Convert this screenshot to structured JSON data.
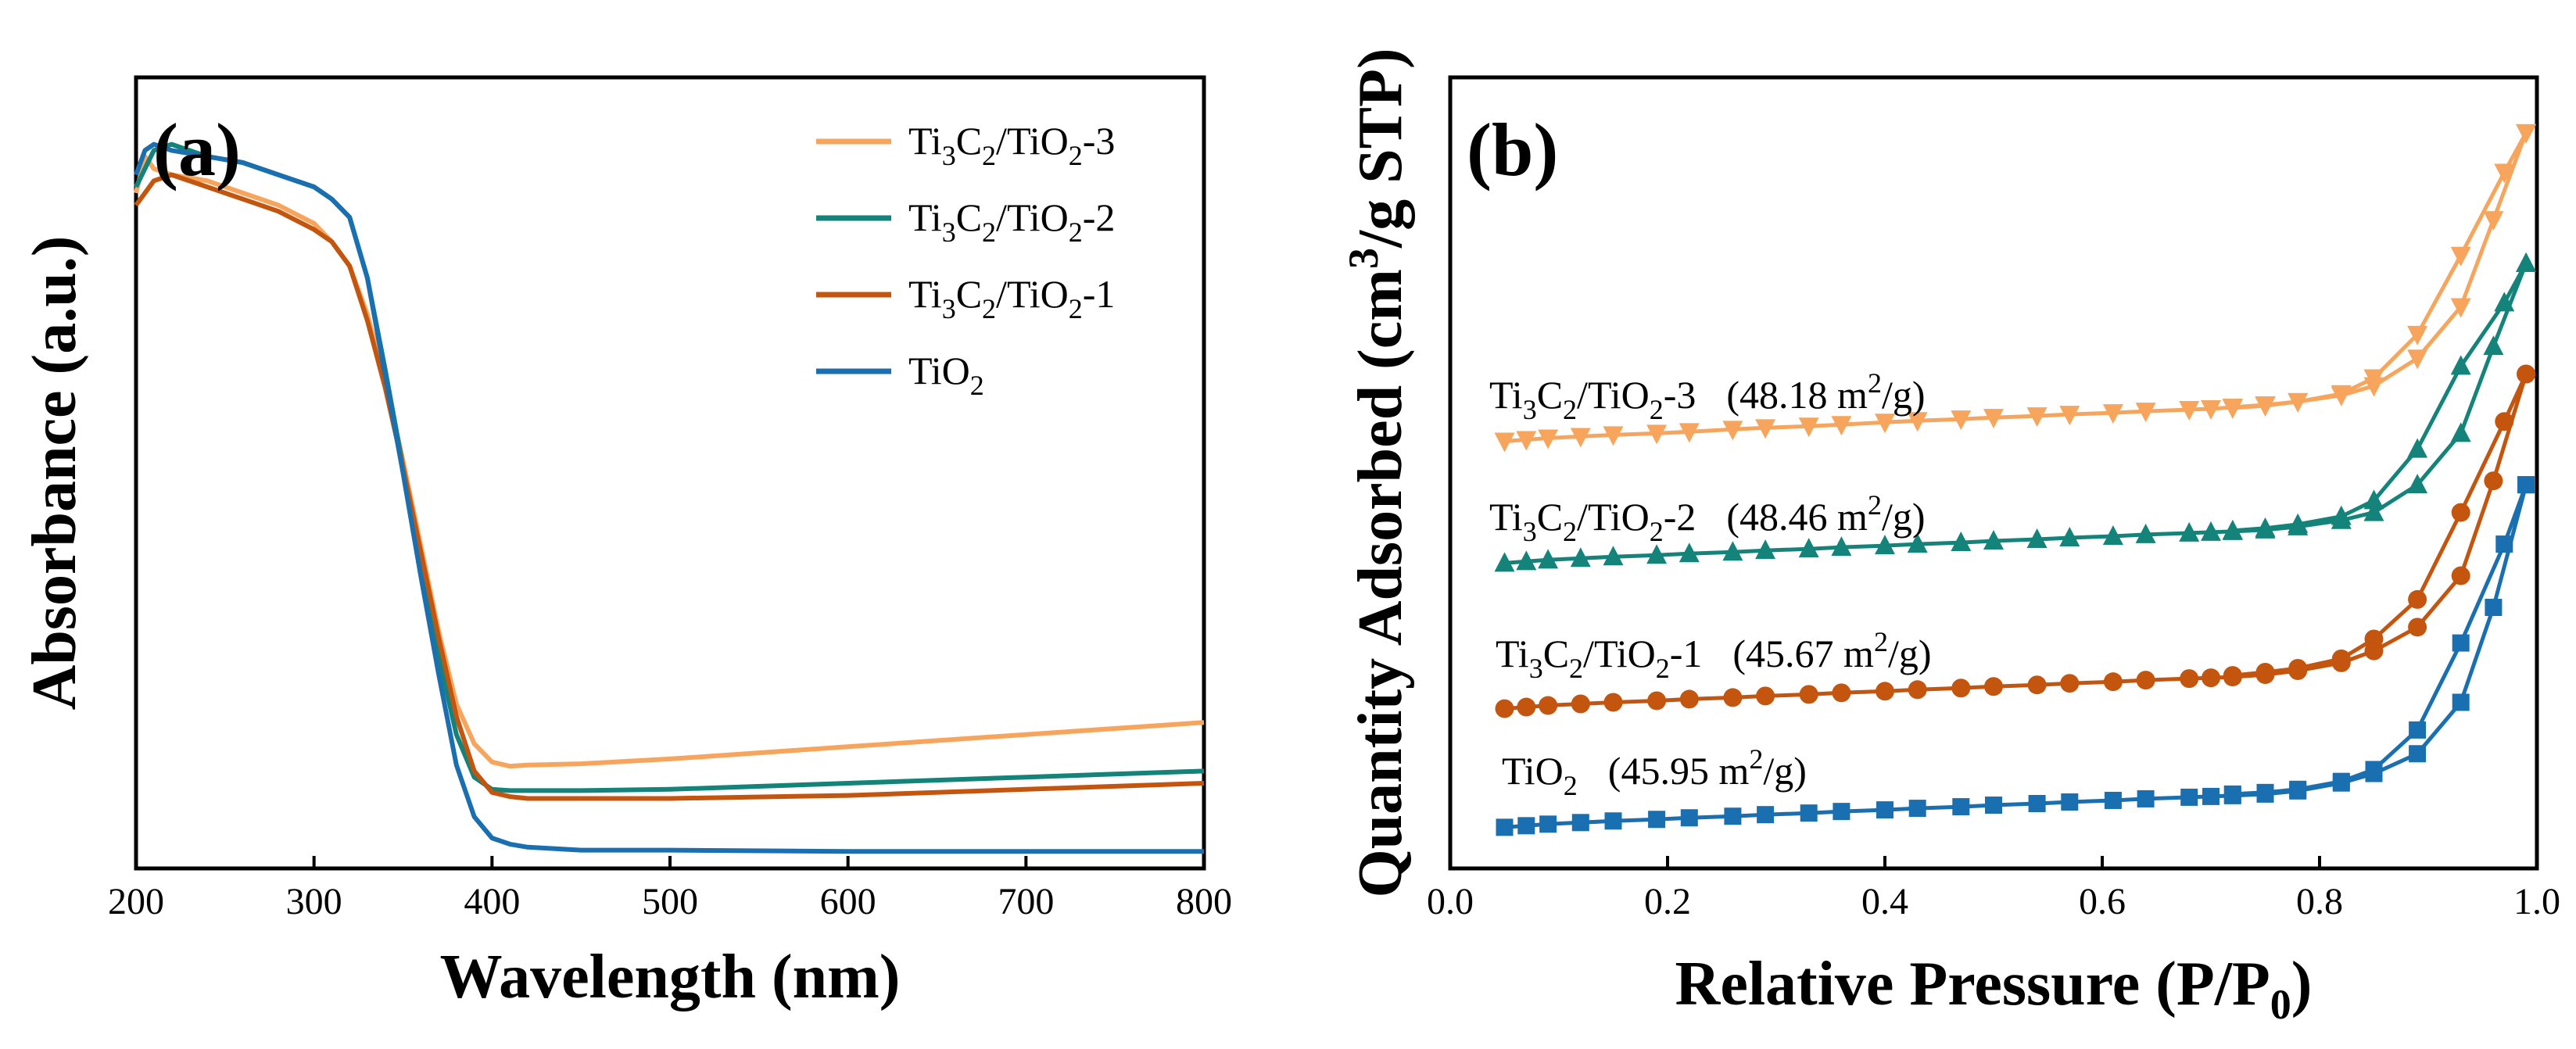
{
  "colors": {
    "tio2": "#1a6fb0",
    "tc1": "#c4550f",
    "tc2": "#14837a",
    "tc3": "#f7a55c"
  },
  "chart_data": [
    {
      "type": "line",
      "panel": "(a)",
      "xlabel": "Wavelength (nm)",
      "ylabel": "Absorbance (a.u.)",
      "xlim": [
        200,
        800
      ],
      "ylim": [
        0,
        1.3
      ],
      "x_ticks": [
        "200",
        "300",
        "400",
        "500",
        "600",
        "700",
        "800"
      ],
      "legend": {
        "placement": "top-right",
        "entries": [
          {
            "key": "tc3",
            "base": "Ti",
            "s1": "3",
            "m1": "C",
            "s2": "2",
            "m2": "/TiO",
            "s3": "2",
            "suffix": "-3"
          },
          {
            "key": "tc2",
            "base": "Ti",
            "s1": "3",
            "m1": "C",
            "s2": "2",
            "m2": "/TiO",
            "s3": "2",
            "suffix": "-2"
          },
          {
            "key": "tc1",
            "base": "Ti",
            "s1": "3",
            "m1": "C",
            "s2": "2",
            "m2": "/TiO",
            "s3": "2",
            "suffix": "-1"
          },
          {
            "key": "tio2",
            "base": "TiO",
            "s1": "2",
            "m1": "",
            "s2": "",
            "m2": "",
            "s3": "",
            "suffix": ""
          }
        ]
      },
      "series": [
        {
          "name": "Ti3C2/TiO2-3",
          "key": "tc3",
          "x": [
            200,
            205,
            210,
            220,
            240,
            260,
            280,
            300,
            310,
            320,
            330,
            340,
            350,
            360,
            370,
            380,
            390,
            400,
            410,
            420,
            450,
            500,
            600,
            700,
            800
          ],
          "y": [
            1.11,
            1.17,
            1.15,
            1.14,
            1.13,
            1.11,
            1.09,
            1.06,
            1.03,
            0.99,
            0.91,
            0.8,
            0.67,
            0.53,
            0.39,
            0.27,
            0.205,
            0.175,
            0.168,
            0.17,
            0.172,
            0.18,
            0.2,
            0.22,
            0.24
          ]
        },
        {
          "name": "Ti3C2/TiO2-2",
          "key": "tc2",
          "x": [
            200,
            205,
            210,
            220,
            240,
            260,
            280,
            300,
            310,
            320,
            330,
            340,
            350,
            360,
            370,
            380,
            390,
            400,
            410,
            420,
            450,
            500,
            600,
            700,
            800
          ],
          "y": [
            1.12,
            1.15,
            1.18,
            1.19,
            1.17,
            1.16,
            1.14,
            1.12,
            1.1,
            1.07,
            0.97,
            0.82,
            0.66,
            0.5,
            0.35,
            0.22,
            0.15,
            0.13,
            0.128,
            0.128,
            0.128,
            0.13,
            0.14,
            0.15,
            0.16
          ]
        },
        {
          "name": "Ti3C2/TiO2-1",
          "key": "tc1",
          "x": [
            200,
            210,
            220,
            240,
            260,
            280,
            300,
            310,
            320,
            330,
            340,
            350,
            360,
            370,
            380,
            390,
            400,
            410,
            420,
            450,
            500,
            600,
            700,
            800
          ],
          "y": [
            1.09,
            1.13,
            1.14,
            1.12,
            1.1,
            1.08,
            1.05,
            1.03,
            0.99,
            0.9,
            0.79,
            0.66,
            0.52,
            0.38,
            0.25,
            0.16,
            0.125,
            0.118,
            0.115,
            0.115,
            0.115,
            0.12,
            0.13,
            0.14
          ]
        },
        {
          "name": "TiO2",
          "key": "tio2",
          "x": [
            200,
            205,
            210,
            220,
            240,
            260,
            280,
            300,
            310,
            320,
            330,
            340,
            350,
            360,
            370,
            380,
            390,
            400,
            410,
            420,
            450,
            500,
            600,
            700,
            800
          ],
          "y": [
            1.14,
            1.18,
            1.19,
            1.18,
            1.17,
            1.16,
            1.14,
            1.12,
            1.1,
            1.07,
            0.97,
            0.81,
            0.65,
            0.48,
            0.32,
            0.17,
            0.085,
            0.05,
            0.04,
            0.035,
            0.03,
            0.03,
            0.028,
            0.028,
            0.028
          ]
        }
      ]
    },
    {
      "type": "line",
      "panel": "(b)",
      "xlabel_main": "Relative Pressure (P/P",
      "xlabel_sub": "0",
      "xlabel_close": ")",
      "ylabel_main": "Quantity Adsorbed (cm",
      "ylabel_sup": "3",
      "ylabel_rest": "/g STP)",
      "xlim": [
        0,
        1.0
      ],
      "ylim": [
        0,
        100
      ],
      "x_ticks": [
        "0.0",
        "0.2",
        "0.4",
        "0.6",
        "0.8",
        "1.0"
      ],
      "annotations": [
        {
          "key": "tc3",
          "base": "Ti",
          "s1": "3",
          "m1": "C",
          "s2": "2",
          "m2": "/TiO",
          "s3": "2",
          "suffix": "-3",
          "area": "(48.18 m",
          "sup": "2",
          "unit": "/g)"
        },
        {
          "key": "tc2",
          "base": "Ti",
          "s1": "3",
          "m1": "C",
          "s2": "2",
          "m2": "/TiO",
          "s3": "2",
          "suffix": "-2",
          "area": "(48.46 m",
          "sup": "2",
          "unit": "/g)"
        },
        {
          "key": "tc1",
          "base": "Ti",
          "s1": "3",
          "m1": "C",
          "s2": "2",
          "m2": "/TiO",
          "s3": "2",
          "suffix": "-1",
          "area": "(45.67 m",
          "sup": "2",
          "unit": "/g)"
        },
        {
          "key": "tio2",
          "base": "TiO",
          "s1": "2",
          "m1": "",
          "s2": "",
          "m2": "",
          "s3": "",
          "suffix": "",
          "area": "(45.95 m",
          "sup": "2",
          "unit": "/g)"
        }
      ],
      "series": [
        {
          "name": "Ti3C2/TiO2-3",
          "key": "tc3",
          "marker": "triangle-down",
          "adsorption_x": [
            0.05,
            0.07,
            0.09,
            0.12,
            0.15,
            0.19,
            0.22,
            0.26,
            0.29,
            0.33,
            0.36,
            0.4,
            0.43,
            0.47,
            0.5,
            0.54,
            0.57,
            0.61,
            0.64,
            0.68,
            0.7,
            0.72,
            0.75,
            0.78,
            0.82,
            0.85,
            0.89,
            0.93,
            0.96,
            0.99
          ],
          "adsorption_y": [
            54.0,
            54.2,
            54.4,
            54.6,
            54.8,
            55.0,
            55.2,
            55.5,
            55.7,
            55.9,
            56.1,
            56.4,
            56.6,
            56.8,
            57.0,
            57.2,
            57.4,
            57.6,
            57.8,
            58.0,
            58.1,
            58.3,
            58.6,
            59.0,
            59.8,
            61.0,
            64.5,
            71.0,
            82.0,
            93.0
          ],
          "desorption_x": [
            0.99,
            0.97,
            0.93,
            0.89,
            0.85,
            0.82,
            0.78,
            0.75,
            0.72
          ],
          "desorption_y": [
            93.0,
            88.0,
            77.5,
            67.5,
            62.0,
            60.0,
            59.0,
            58.5,
            58.2
          ]
        },
        {
          "name": "Ti3C2/TiO2-2",
          "key": "tc2",
          "marker": "triangle-up",
          "adsorption_x": [
            0.05,
            0.07,
            0.09,
            0.12,
            0.15,
            0.19,
            0.22,
            0.26,
            0.29,
            0.33,
            0.36,
            0.4,
            0.43,
            0.47,
            0.5,
            0.54,
            0.57,
            0.61,
            0.64,
            0.68,
            0.7,
            0.72,
            0.75,
            0.78,
            0.82,
            0.85,
            0.89,
            0.93,
            0.96,
            0.99
          ],
          "adsorption_y": [
            38.6,
            38.8,
            39.0,
            39.2,
            39.4,
            39.6,
            39.8,
            40.0,
            40.2,
            40.4,
            40.6,
            40.8,
            41.0,
            41.2,
            41.4,
            41.6,
            41.8,
            42.0,
            42.2,
            42.4,
            42.5,
            42.6,
            42.8,
            43.2,
            44.0,
            45.0,
            48.5,
            55.0,
            66.0,
            76.5
          ],
          "desorption_x": [
            0.99,
            0.97,
            0.93,
            0.89,
            0.85,
            0.82,
            0.78,
            0.75,
            0.72
          ],
          "desorption_y": [
            76.5,
            71.5,
            63.5,
            53.0,
            46.5,
            44.5,
            43.5,
            43.0,
            42.7
          ]
        },
        {
          "name": "Ti3C2/TiO2-1",
          "key": "tc1",
          "marker": "circle",
          "adsorption_x": [
            0.05,
            0.07,
            0.09,
            0.12,
            0.15,
            0.19,
            0.22,
            0.26,
            0.29,
            0.33,
            0.36,
            0.4,
            0.43,
            0.47,
            0.5,
            0.54,
            0.57,
            0.61,
            0.64,
            0.68,
            0.7,
            0.72,
            0.75,
            0.78,
            0.82,
            0.85,
            0.89,
            0.93,
            0.96,
            0.99
          ],
          "adsorption_y": [
            20.2,
            20.4,
            20.6,
            20.8,
            21.0,
            21.2,
            21.4,
            21.6,
            21.8,
            22.0,
            22.2,
            22.4,
            22.6,
            22.8,
            23.0,
            23.2,
            23.4,
            23.6,
            23.8,
            24.0,
            24.1,
            24.2,
            24.5,
            25.0,
            26.0,
            27.5,
            30.5,
            37.0,
            49.0,
            62.5
          ],
          "desorption_x": [
            0.99,
            0.97,
            0.93,
            0.89,
            0.85,
            0.82,
            0.78,
            0.75,
            0.72
          ],
          "desorption_y": [
            62.5,
            56.5,
            45.0,
            34.0,
            29.0,
            26.5,
            25.3,
            24.8,
            24.4
          ]
        },
        {
          "name": "TiO2",
          "key": "tio2",
          "marker": "square",
          "adsorption_x": [
            0.05,
            0.07,
            0.09,
            0.12,
            0.15,
            0.19,
            0.22,
            0.26,
            0.29,
            0.33,
            0.36,
            0.4,
            0.43,
            0.47,
            0.5,
            0.54,
            0.57,
            0.61,
            0.64,
            0.68,
            0.7,
            0.72,
            0.75,
            0.78,
            0.82,
            0.85,
            0.89,
            0.93,
            0.96,
            0.99
          ],
          "adsorption_y": [
            5.2,
            5.4,
            5.6,
            5.8,
            6.0,
            6.2,
            6.4,
            6.6,
            6.8,
            7.0,
            7.2,
            7.4,
            7.6,
            7.8,
            8.0,
            8.2,
            8.4,
            8.6,
            8.8,
            9.0,
            9.1,
            9.2,
            9.4,
            9.8,
            10.8,
            12.0,
            14.5,
            21.0,
            33.0,
            48.5
          ],
          "desorption_x": [
            0.99,
            0.97,
            0.93,
            0.89,
            0.85,
            0.82,
            0.78,
            0.75,
            0.72
          ],
          "desorption_y": [
            48.5,
            41.0,
            28.5,
            17.5,
            12.5,
            11.0,
            10.0,
            9.6,
            9.4
          ]
        }
      ]
    }
  ]
}
